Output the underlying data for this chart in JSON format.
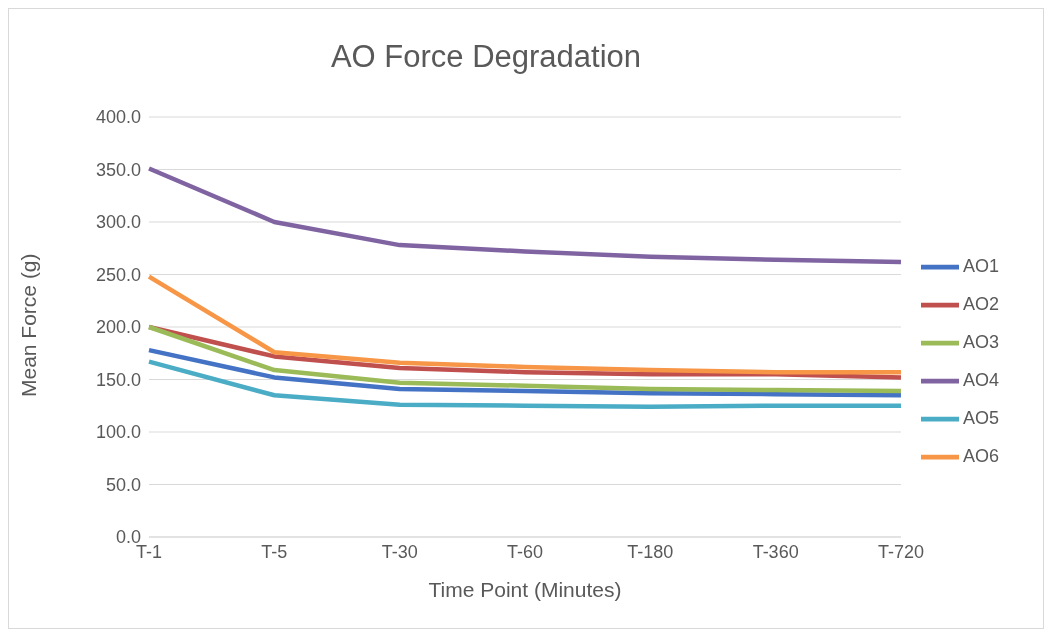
{
  "chart_data": {
    "type": "line",
    "title": "AO Force Degradation",
    "xlabel": "Time Point (Minutes)",
    "ylabel": "Mean Force (g)",
    "categories": [
      "T-1",
      "T-5",
      "T-30",
      "T-60",
      "T-180",
      "T-360",
      "T-720"
    ],
    "series": [
      {
        "name": "AO1",
        "color": "#4472c4",
        "values": [
          178,
          152,
          141,
          139,
          137,
          136,
          135
        ]
      },
      {
        "name": "AO2",
        "color": "#c0504d",
        "values": [
          200,
          172,
          161,
          157,
          155,
          155,
          152
        ]
      },
      {
        "name": "AO3",
        "color": "#9bbb59",
        "values": [
          200,
          159,
          147,
          144,
          141,
          140,
          139
        ]
      },
      {
        "name": "AO4",
        "color": "#8064a2",
        "values": [
          351,
          300,
          278,
          272,
          267,
          264,
          262
        ]
      },
      {
        "name": "AO5",
        "color": "#4bacc6",
        "values": [
          167,
          135,
          126,
          125,
          124,
          125,
          125
        ]
      },
      {
        "name": "AO6",
        "color": "#f79646",
        "values": [
          248,
          176,
          166,
          162,
          159,
          157,
          157
        ]
      }
    ],
    "ylim": [
      0,
      400
    ],
    "yticks": [
      {
        "value": 0,
        "label": "0.0"
      },
      {
        "value": 50,
        "label": "50.0"
      },
      {
        "value": 100,
        "label": "100.0"
      },
      {
        "value": 150,
        "label": "150.0"
      },
      {
        "value": 200,
        "label": "200.0"
      },
      {
        "value": 250,
        "label": "250.0"
      },
      {
        "value": 300,
        "label": "300.0"
      },
      {
        "value": 350,
        "label": "350.0"
      },
      {
        "value": 400,
        "label": "400.0"
      }
    ],
    "grid": "y",
    "legend": "right",
    "marker": "none",
    "line_style": "solid"
  }
}
